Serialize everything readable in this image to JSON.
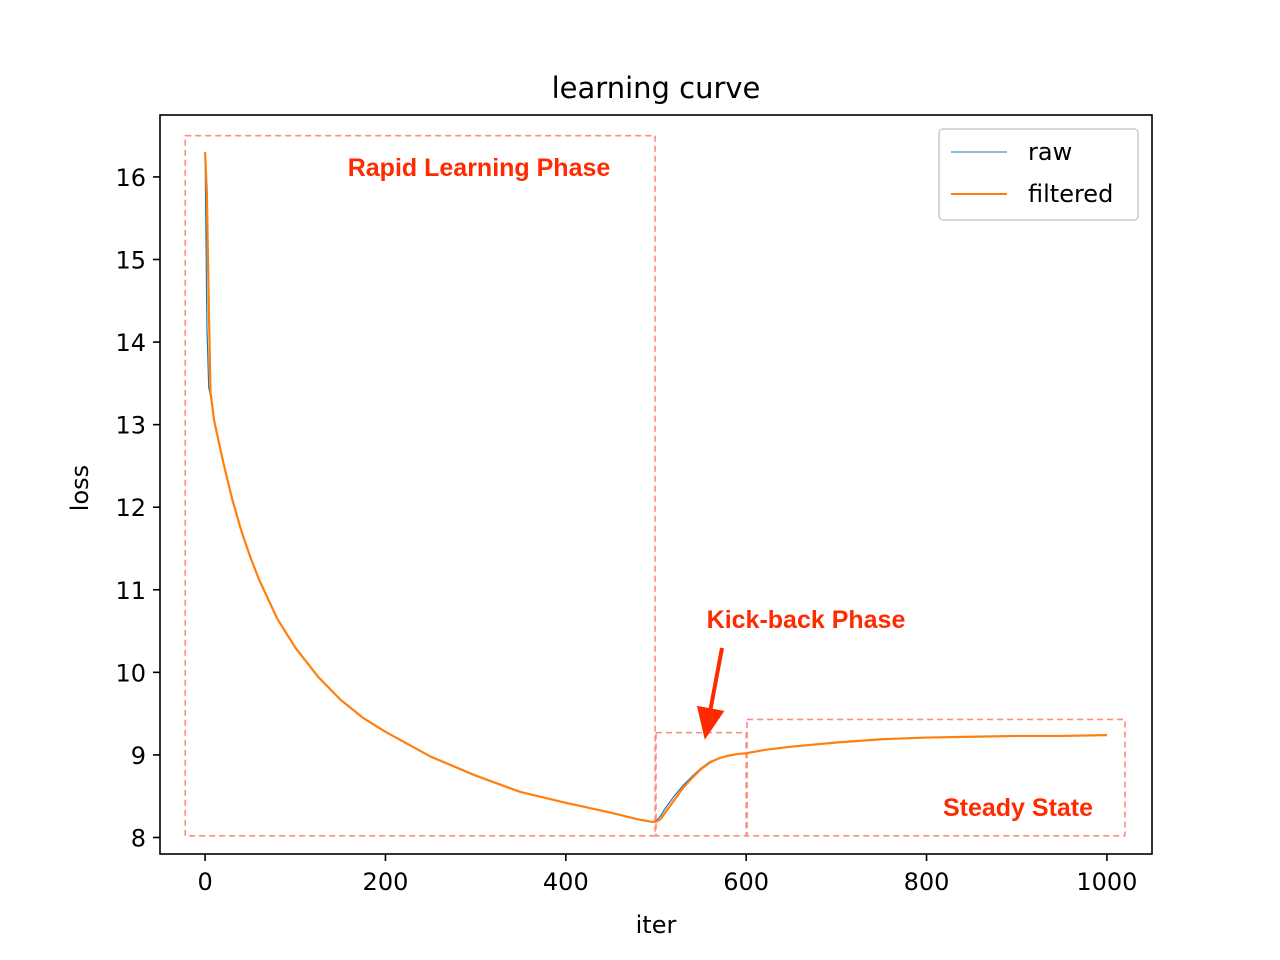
{
  "chart_data": {
    "type": "line",
    "title": "learning curve",
    "xlabel": "iter",
    "ylabel": "loss",
    "xlim": [
      -50,
      1050
    ],
    "ylim": [
      7.8,
      16.75
    ],
    "xticks": [
      0,
      200,
      400,
      600,
      800,
      1000
    ],
    "yticks": [
      8,
      9,
      10,
      11,
      12,
      13,
      14,
      15,
      16
    ],
    "legend": {
      "placement": "top-right"
    },
    "colors": {
      "raw": "#1f77b4",
      "filtered": "#ff7f0e",
      "annotation": "#ff2a00",
      "region_box": "#ff8a80"
    },
    "series": [
      {
        "name": "raw",
        "x": [
          0,
          2,
          4,
          6,
          10,
          20,
          30,
          40,
          50,
          60,
          80,
          100,
          125,
          150,
          175,
          200,
          250,
          300,
          350,
          400,
          450,
          480,
          490,
          495,
          500,
          505,
          510,
          520,
          530,
          540,
          550,
          560,
          570,
          580,
          590,
          600,
          620,
          650,
          700,
          750,
          800,
          850,
          900,
          950,
          1000
        ],
        "y": [
          16.3,
          14.2,
          13.45,
          13.35,
          13.05,
          12.55,
          12.1,
          11.72,
          11.4,
          11.12,
          10.65,
          10.3,
          9.95,
          9.67,
          9.45,
          9.28,
          8.98,
          8.75,
          8.55,
          8.42,
          8.3,
          8.22,
          8.2,
          8.19,
          8.2,
          8.26,
          8.35,
          8.5,
          8.63,
          8.74,
          8.84,
          8.92,
          8.96,
          8.99,
          9.01,
          9.02,
          9.06,
          9.1,
          9.15,
          9.19,
          9.21,
          9.22,
          9.23,
          9.23,
          9.24
        ]
      },
      {
        "name": "filtered",
        "x": [
          0,
          2,
          4,
          6,
          10,
          20,
          30,
          40,
          50,
          60,
          80,
          100,
          125,
          150,
          175,
          200,
          250,
          300,
          350,
          400,
          450,
          480,
          490,
          495,
          500,
          505,
          510,
          520,
          530,
          540,
          550,
          560,
          570,
          580,
          590,
          600,
          620,
          650,
          700,
          750,
          800,
          850,
          900,
          950,
          1000
        ],
        "y": [
          16.3,
          15.8,
          14.5,
          13.4,
          13.05,
          12.55,
          12.1,
          11.72,
          11.4,
          11.12,
          10.65,
          10.3,
          9.95,
          9.67,
          9.45,
          9.28,
          8.98,
          8.75,
          8.55,
          8.42,
          8.3,
          8.22,
          8.2,
          8.19,
          8.19,
          8.22,
          8.3,
          8.45,
          8.6,
          8.72,
          8.83,
          8.91,
          8.96,
          8.99,
          9.01,
          9.02,
          9.06,
          9.1,
          9.15,
          9.19,
          9.21,
          9.22,
          9.23,
          9.23,
          9.24
        ]
      }
    ],
    "annotations": [
      {
        "text": "Rapid Learning Phase",
        "x_range": [
          -22,
          499
        ],
        "y_range": [
          8.02,
          16.5
        ]
      },
      {
        "text": "Kick-back Phase",
        "x_range": [
          500,
          600
        ],
        "y_range": [
          8.02,
          9.27
        ]
      },
      {
        "text": "Steady State",
        "x_range": [
          601,
          1020
        ],
        "y_range": [
          8.02,
          9.43
        ]
      }
    ]
  }
}
